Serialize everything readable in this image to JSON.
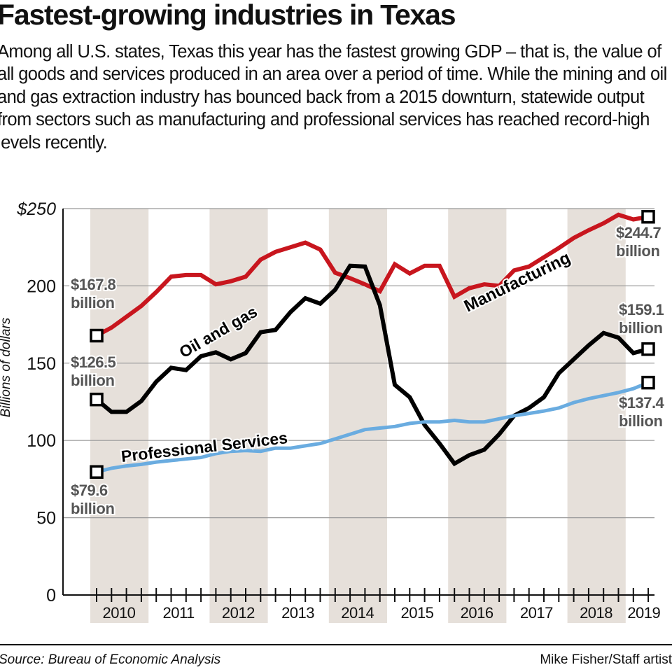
{
  "header": {
    "title": "Fastest-growing industries in Texas",
    "description": "Among all U.S. states, Texas this year has the fastest growing GDP – that is, the value of all goods and services produced in an area over a period of time. While the mining and oil and gas extraction industry has bounced back from a 2015 downturn, statewide output from sectors such as manufacturing and professional services has reached record-high levels recently."
  },
  "footer": {
    "source": "Source: Bureau of Economic Analysis",
    "credit": "Mike Fisher/Staff artist"
  },
  "colors": {
    "manufacturing": "#c8161e",
    "oil_and_gas": "#000000",
    "professional_services": "#6aace0",
    "band": "#e6e0da",
    "label_text": "#555555",
    "grid": "#999999"
  },
  "chart_data": {
    "type": "line",
    "title": "Fastest-growing industries in Texas",
    "xlabel": "",
    "ylabel": "Billions of dollars",
    "ylim": [
      0,
      250
    ],
    "yticks": [
      0,
      50,
      100,
      150,
      200,
      250
    ],
    "ytick_labels": [
      "0",
      "50",
      "100",
      "150",
      "200",
      "$250"
    ],
    "grid": true,
    "x_frequency": "quarterly",
    "x_start": "2010 Q1",
    "x_end": "2019 Q2",
    "year_labels": [
      "2010",
      "2011",
      "2012",
      "2013",
      "2014",
      "2015",
      "2016",
      "2017",
      "2018",
      "2019"
    ],
    "shaded_years": [
      "2010",
      "2012",
      "2014",
      "2016",
      "2018"
    ],
    "series": [
      {
        "name": "Manufacturing",
        "color": "#c8161e",
        "values": [
          167.8,
          173,
          180,
          187,
          196,
          206,
          207,
          207,
          201,
          203,
          206,
          217,
          222,
          225,
          228,
          223.5,
          208.5,
          205,
          201,
          196.5,
          214,
          208,
          213,
          213,
          193,
          198.5,
          201,
          200,
          210,
          212.5,
          218.5,
          224.5,
          231,
          236,
          240.5,
          246,
          243,
          244.7
        ],
        "start_label": "$167.8 billion",
        "end_label": "$244.7 billion"
      },
      {
        "name": "Oil and gas",
        "color": "#000000",
        "values": [
          126.5,
          118.5,
          118.5,
          125.5,
          138,
          147,
          145.5,
          154.5,
          157,
          152.5,
          156.5,
          170,
          171.5,
          183,
          192,
          188.5,
          197.5,
          213,
          212.5,
          187.5,
          136,
          128,
          110,
          98,
          85,
          90.5,
          94,
          104,
          116,
          121,
          128,
          143.5,
          152.5,
          161.5,
          169.5,
          166.5,
          156.5,
          159.1
        ],
        "start_label": "$126.5 billion",
        "end_label": "$159.1 billion"
      },
      {
        "name": "Professional Services",
        "color": "#6aace0",
        "values": [
          79.6,
          82,
          83.5,
          84.5,
          86,
          87,
          88,
          89,
          91.5,
          93,
          93.5,
          93,
          95,
          95,
          96.5,
          98,
          101,
          104,
          107,
          108,
          109,
          111,
          112,
          112,
          113,
          112,
          112,
          114,
          116,
          117.5,
          119,
          121,
          124.5,
          127,
          129,
          131,
          133.5,
          137.4
        ],
        "start_label": "$79.6 billion",
        "end_label": "$137.4 billion"
      }
    ],
    "annotations": [
      {
        "text": "$167.8",
        "text2": "billion",
        "series": "Manufacturing",
        "position": "start"
      },
      {
        "text": "$126.5",
        "text2": "billion",
        "series": "Oil and gas",
        "position": "start"
      },
      {
        "text": "$79.6",
        "text2": "billion",
        "series": "Professional Services",
        "position": "start"
      },
      {
        "text": "$244.7",
        "text2": "billion",
        "series": "Manufacturing",
        "position": "end"
      },
      {
        "text": "$159.1",
        "text2": "billion",
        "series": "Oil and gas",
        "position": "end"
      },
      {
        "text": "$137.4",
        "text2": "billion",
        "series": "Professional Services",
        "position": "end"
      }
    ],
    "series_labels": [
      "Manufacturing",
      "Oil and gas",
      "Professional Services"
    ]
  }
}
